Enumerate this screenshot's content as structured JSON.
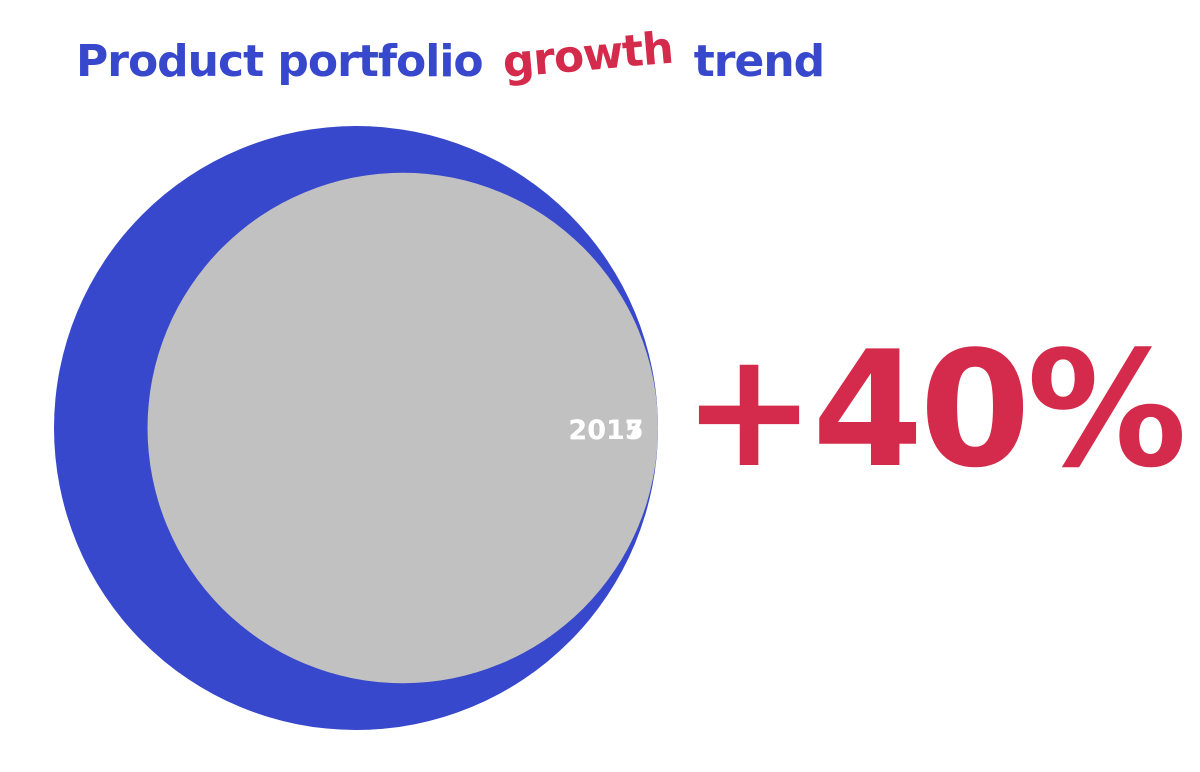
{
  "title": {
    "part1": "Product portfolio",
    "accent": "growth",
    "part2": "trend"
  },
  "colors": {
    "title": "#3848cc",
    "accent": "#d42a4c",
    "outer_circle": "#3848cc",
    "inner_circle": "#c1c1c1",
    "labels": "#ffffff"
  },
  "chart_data": {
    "type": "nested-circle",
    "series": [
      {
        "name": "2017",
        "value": 1.4
      },
      {
        "name": "2015",
        "value": 1.0
      }
    ],
    "change_label": "+40%"
  }
}
